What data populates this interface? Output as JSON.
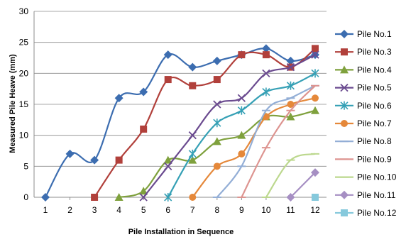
{
  "chart_data": {
    "type": "line",
    "title": "",
    "xlabel": "Pile Installation in Sequence",
    "ylabel": "Measured Pile Heave (mm)",
    "xlim": [
      1,
      12
    ],
    "ylim": [
      0,
      30
    ],
    "x_ticks": [
      1,
      2,
      3,
      4,
      5,
      6,
      7,
      8,
      9,
      10,
      11,
      12
    ],
    "y_ticks": [
      0,
      5,
      10,
      15,
      20,
      25,
      30
    ],
    "grid": "horizontal",
    "legend_position": "right",
    "series": [
      {
        "name": "Pile No.1",
        "color": "#3C6DB0",
        "marker": "diamond",
        "x": [
          1,
          2,
          3,
          4,
          5,
          6,
          7,
          8,
          9,
          10,
          11,
          12
        ],
        "values": [
          0,
          7,
          6,
          16,
          17,
          23,
          21,
          22,
          23,
          24,
          22,
          23
        ]
      },
      {
        "name": "Pile No.3",
        "color": "#B1403B",
        "marker": "square",
        "x": [
          3,
          4,
          5,
          6,
          7,
          8,
          9,
          10,
          11,
          12
        ],
        "values": [
          0,
          6,
          11,
          19,
          18,
          19,
          23,
          23,
          21,
          24
        ]
      },
      {
        "name": "Pile No.4",
        "color": "#7FA13D",
        "marker": "triangle",
        "x": [
          4,
          5,
          6,
          7,
          8,
          9,
          10,
          11,
          12
        ],
        "values": [
          0,
          1,
          6,
          6,
          9,
          10,
          13,
          13,
          14
        ]
      },
      {
        "name": "Pile No.5",
        "color": "#6A4A8F",
        "marker": "x",
        "x": [
          5,
          6,
          7,
          8,
          9,
          10,
          11,
          12
        ],
        "values": [
          0,
          5,
          10,
          15,
          16,
          20,
          21,
          23
        ]
      },
      {
        "name": "Pile No.6",
        "color": "#35A0B5",
        "marker": "star",
        "x": [
          6,
          7,
          8,
          9,
          10,
          11,
          12
        ],
        "values": [
          0,
          7,
          12,
          14,
          17,
          18,
          20
        ]
      },
      {
        "name": "Pile No.7",
        "color": "#E5883A",
        "marker": "circle",
        "x": [
          7,
          8,
          9,
          10,
          11,
          12
        ],
        "values": [
          0,
          5,
          7,
          13,
          15,
          16
        ]
      },
      {
        "name": "Pile No.8",
        "color": "#93AED6",
        "marker": "dash",
        "x": [
          8,
          9,
          10,
          11,
          12
        ],
        "values": [
          0,
          5,
          14,
          16,
          18
        ]
      },
      {
        "name": "Pile No.9",
        "color": "#DD9490",
        "marker": "dash",
        "x": [
          9,
          10,
          11,
          12
        ],
        "values": [
          0,
          8,
          14,
          18
        ]
      },
      {
        "name": "Pile No.10",
        "color": "#BCD88E",
        "marker": "dash",
        "x": [
          10,
          11,
          12
        ],
        "values": [
          0,
          6,
          7
        ]
      },
      {
        "name": "Pile No.11",
        "color": "#A68FC3",
        "marker": "diamond",
        "x": [
          11,
          12
        ],
        "values": [
          0,
          4
        ]
      },
      {
        "name": "Pile No.12",
        "color": "#86C9DC",
        "marker": "square",
        "x": [
          12
        ],
        "values": [
          0
        ]
      }
    ]
  }
}
